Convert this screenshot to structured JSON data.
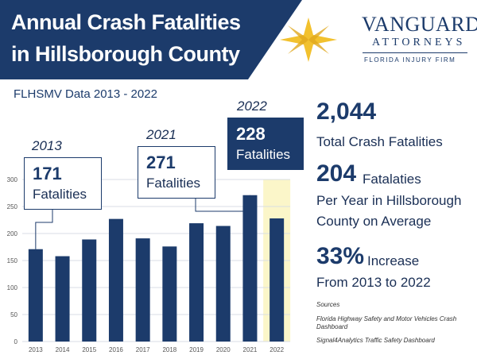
{
  "header": {
    "title_line1": "Annual Crash Fatalities",
    "title_line2": "in Hillsborough County"
  },
  "logo": {
    "name": "VANGUARD",
    "sub": "ATTORNEYS",
    "tagline": "FLORIDA INJURY FIRM"
  },
  "subtitle": "FLHSMV Data 2013 - 2022",
  "chart_data": {
    "type": "bar",
    "categories": [
      "2013",
      "2014",
      "2015",
      "2016",
      "2017",
      "2018",
      "2019",
      "2020",
      "2021",
      "2022"
    ],
    "values": [
      171,
      158,
      189,
      227,
      191,
      176,
      219,
      214,
      271,
      228
    ],
    "ylim": [
      0,
      300
    ],
    "yticks": [
      0,
      50,
      100,
      150,
      200,
      250,
      300
    ],
    "grid": true,
    "highlight_category": "2022",
    "bar_color": "#1c3b6b",
    "highlight_color": "#fbf6c9"
  },
  "callouts": [
    {
      "year": "2013",
      "value": "171",
      "label": "Fatalities"
    },
    {
      "year": "2021",
      "value": "271",
      "label": "Fatalities"
    },
    {
      "year": "2022",
      "value": "228",
      "label": "Fatalities"
    }
  ],
  "stats": {
    "total_value": "2,044",
    "total_label": "Total Crash Fatalities",
    "avg_value": "204",
    "avg_label_1": "Fatalaties",
    "avg_label_2": "Per Year in Hillsborough",
    "avg_label_3": "County on Average",
    "increase_value": "33%",
    "increase_label_1": "Increase",
    "increase_label_2": "From 2013 to 2022"
  },
  "sources": {
    "heading": "Sources",
    "item1": "Florida Highway Safety and Motor Vehicles Crash Dashboard",
    "item2": "Signal4Analytics Traffic Safety Dashboard"
  }
}
